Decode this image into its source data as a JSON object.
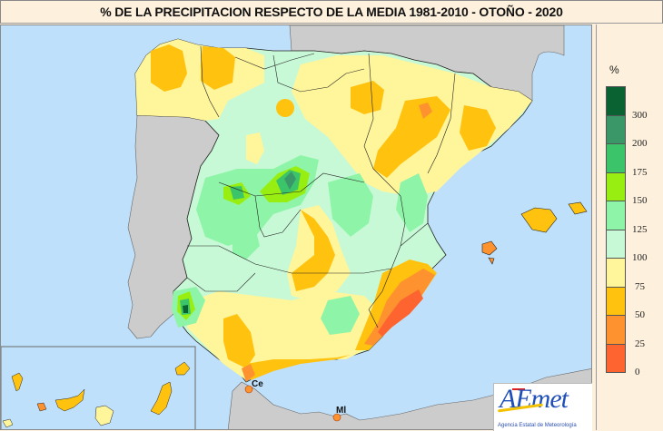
{
  "header": {
    "title": "% DE LA PRECIPITACION RESPECTO DE LA MEDIA 1981-2010 - OTOÑO - 2020"
  },
  "legend": {
    "unit": "%",
    "classes": [
      {
        "label": "300",
        "color": "#0a6132"
      },
      {
        "label": "200",
        "color": "#3a9868"
      },
      {
        "label": "175",
        "color": "#3cc46a"
      },
      {
        "label": "150",
        "color": "#99ee11"
      },
      {
        "label": "125",
        "color": "#8ef5a8"
      },
      {
        "label": "100",
        "color": "#c8f9d6"
      },
      {
        "label": "75",
        "color": "#fff59a"
      },
      {
        "label": "50",
        "color": "#ffc20e"
      },
      {
        "label": "25",
        "color": "#fd922f"
      },
      {
        "label": "0",
        "color": "#fd6430"
      }
    ]
  },
  "map": {
    "sea_color": "#bfe0fb",
    "land_foreign_color": "#cccccc",
    "city_labels": [
      {
        "label": "Ce"
      },
      {
        "label": "Ml"
      }
    ]
  },
  "logo": {
    "name": "AEmet",
    "subtitle": "Agencia Estatal de Meteorología"
  }
}
